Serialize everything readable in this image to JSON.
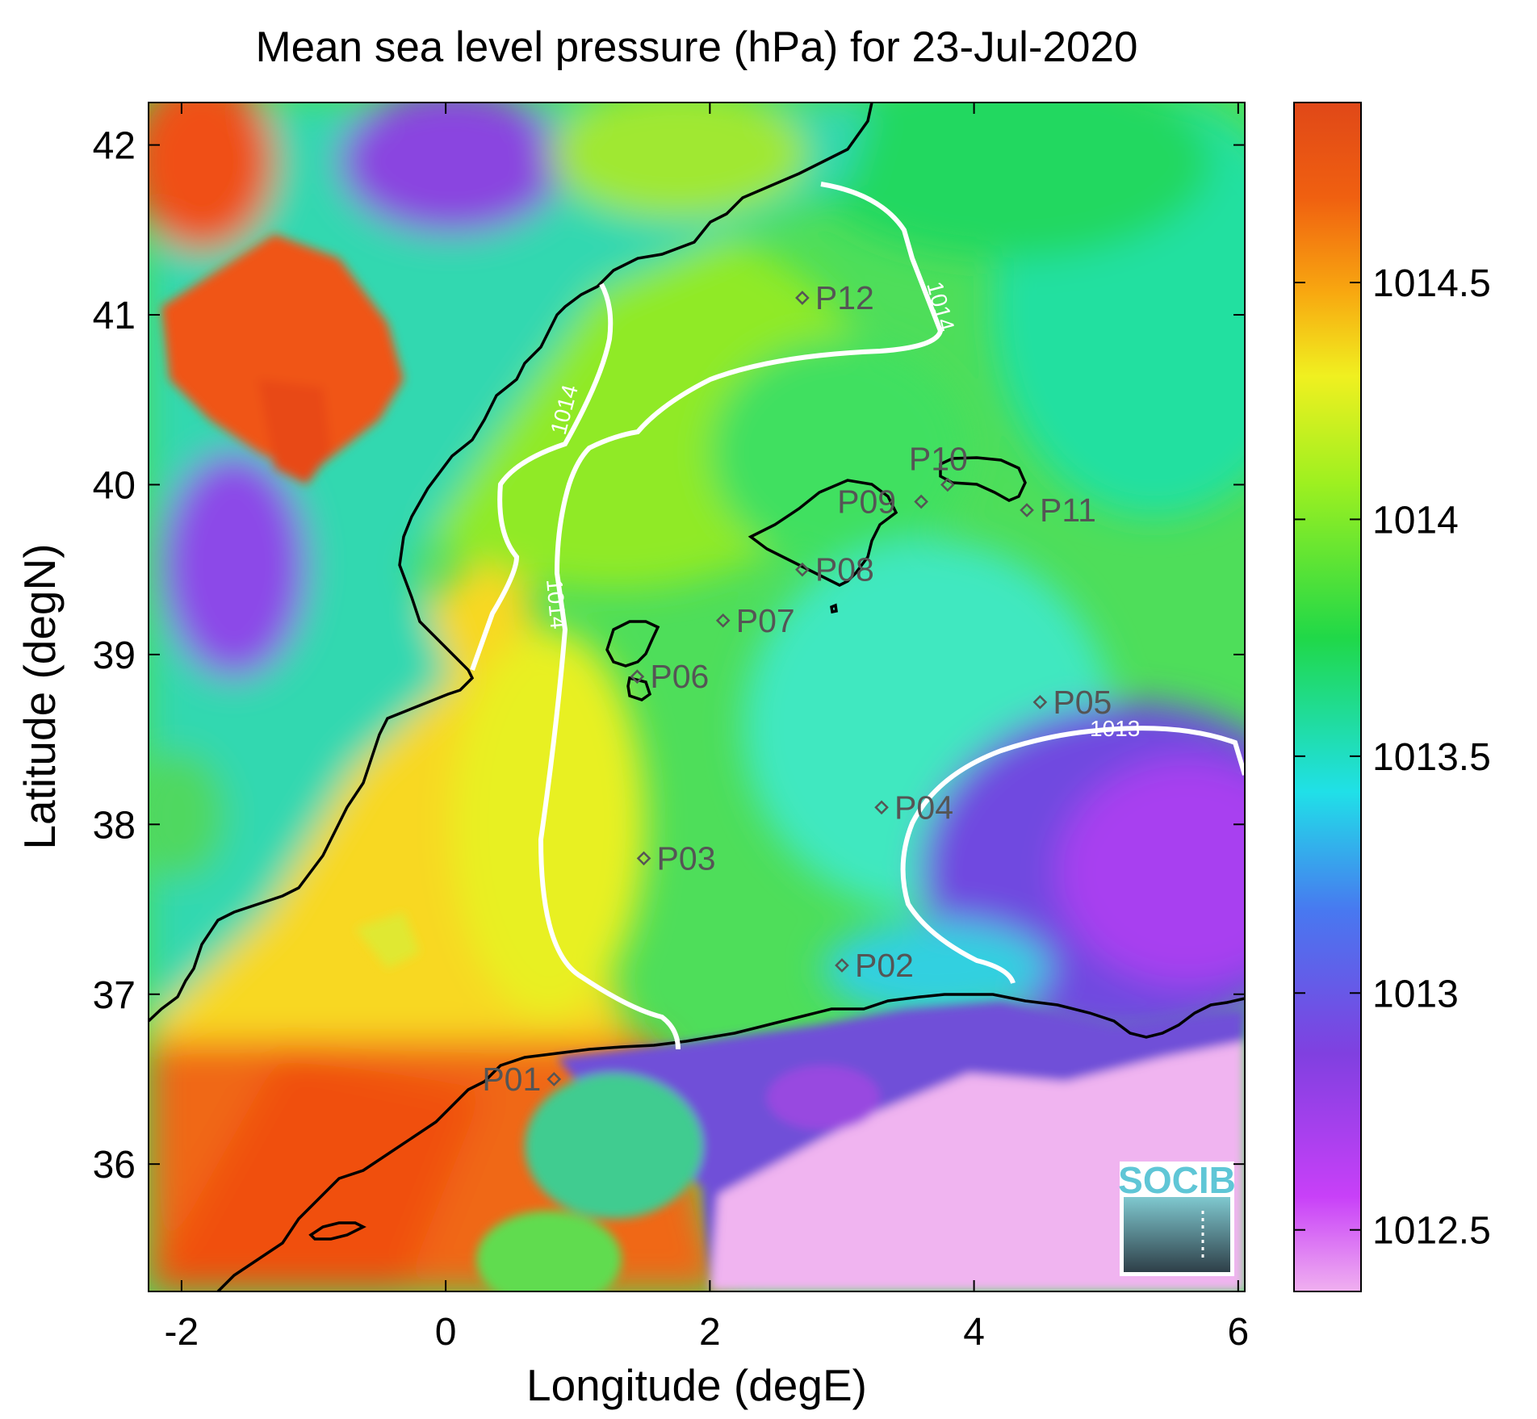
{
  "title": "Mean sea level pressure (hPa) for 23-Jul-2020",
  "xaxis": {
    "label": "Longitude (degE)",
    "ticks": [
      -2,
      0,
      2,
      4,
      6
    ],
    "tick_labels": [
      "-2",
      "0",
      "2",
      "4",
      "6"
    ],
    "range": [
      -2.25,
      6.05
    ]
  },
  "yaxis": {
    "label": "Latitude (degN)",
    "ticks": [
      36,
      37,
      38,
      39,
      40,
      41,
      42
    ],
    "tick_labels": [
      "36",
      "37",
      "38",
      "39",
      "40",
      "41",
      "42"
    ],
    "range": [
      35.25,
      42.25
    ]
  },
  "colorbar": {
    "ticks": [
      1012.5,
      1013,
      1013.5,
      1014,
      1014.5
    ],
    "tick_labels": [
      "1012.5",
      "1013",
      "1013.5",
      "1014",
      "1014.5"
    ],
    "range": [
      1012.37,
      1014.88
    ],
    "colormap": [
      "#f0b0f0",
      "#c840f8",
      "#8040e0",
      "#4878f0",
      "#20e0e8",
      "#20d848",
      "#9ef020",
      "#f0f020",
      "#f8a810",
      "#f06010",
      "#e04818"
    ]
  },
  "contours": [
    {
      "level": 1014,
      "label": "1014"
    },
    {
      "level": 1014,
      "label": "1014"
    },
    {
      "level": 1014,
      "label": "1014"
    },
    {
      "level": 1013,
      "label": "1013"
    }
  ],
  "stations": [
    {
      "id": "P01",
      "lon": 0.82,
      "lat": 36.5
    },
    {
      "id": "P02",
      "lon": 3.0,
      "lat": 37.17
    },
    {
      "id": "P03",
      "lon": 1.5,
      "lat": 37.8
    },
    {
      "id": "P04",
      "lon": 3.3,
      "lat": 38.1
    },
    {
      "id": "P05",
      "lon": 4.5,
      "lat": 38.72
    },
    {
      "id": "P06",
      "lon": 1.45,
      "lat": 38.87
    },
    {
      "id": "P07",
      "lon": 2.1,
      "lat": 39.2
    },
    {
      "id": "P08",
      "lon": 2.7,
      "lat": 39.5
    },
    {
      "id": "P09",
      "lon": 3.6,
      "lat": 39.9
    },
    {
      "id": "P10",
      "lon": 3.8,
      "lat": 40.0
    },
    {
      "id": "P11",
      "lon": 4.4,
      "lat": 39.85
    },
    {
      "id": "P12",
      "lon": 2.7,
      "lat": 41.1
    }
  ],
  "logo": {
    "text": "SOCIB"
  }
}
